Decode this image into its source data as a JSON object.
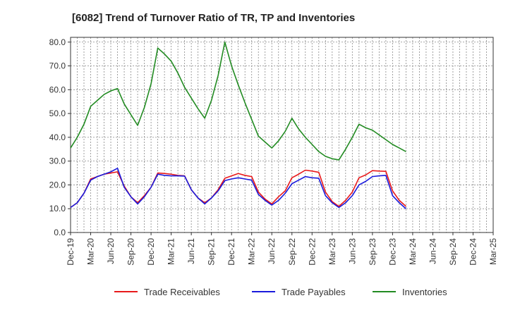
{
  "chart_data": {
    "type": "line",
    "title": "[6082]  Trend of Turnover Ratio of TR, TP and Inventories",
    "xlabel": "",
    "ylabel": "",
    "ylim": [
      0,
      82
    ],
    "yticks": [
      0,
      10,
      20,
      30,
      40,
      50,
      60,
      70,
      80
    ],
    "x_start": "Dec-19",
    "x_tick_labels": [
      "Dec-19",
      "Mar-20",
      "Jun-20",
      "Sep-20",
      "Dec-20",
      "Mar-21",
      "Jun-21",
      "Sep-21",
      "Dec-21",
      "Mar-22",
      "Jun-22",
      "Sep-22",
      "Dec-22",
      "Mar-23",
      "Jun-23",
      "Sep-23",
      "Dec-23",
      "Mar-24",
      "Jun-24",
      "Sep-24",
      "Dec-24",
      "Mar-25"
    ],
    "grid": true,
    "legend_position": "bottom",
    "series": [
      {
        "name": "Trade Receivables",
        "color": "#e8191b",
        "values": [
          10.5,
          12.5,
          16.5,
          22.5,
          23.5,
          24.5,
          25.0,
          25.5,
          19.5,
          15.0,
          12.5,
          15.5,
          19.0,
          25.0,
          24.8,
          24.5,
          24.0,
          23.8,
          18.0,
          14.5,
          12.5,
          14.5,
          18.0,
          22.8,
          23.8,
          24.8,
          24.0,
          23.5,
          17.0,
          14.0,
          12.0,
          15.0,
          17.5,
          23.0,
          24.5,
          26.2,
          25.8,
          25.3,
          17.0,
          13.0,
          11.0,
          13.5,
          17.0,
          23.0,
          24.2,
          26.0,
          25.8,
          25.7,
          17.5,
          13.5,
          11.0
        ]
      },
      {
        "name": "Trade Payables",
        "color": "#1a1adc",
        "values": [
          10.5,
          12.5,
          16.5,
          22.0,
          23.5,
          24.5,
          25.5,
          27.0,
          19.0,
          15.0,
          12.0,
          15.0,
          19.0,
          24.5,
          24.0,
          23.8,
          23.8,
          23.7,
          18.0,
          14.5,
          12.0,
          14.5,
          17.5,
          21.8,
          22.5,
          23.0,
          22.5,
          22.0,
          16.0,
          13.5,
          11.5,
          13.5,
          16.5,
          20.5,
          22.0,
          23.5,
          23.0,
          22.8,
          15.5,
          12.5,
          10.5,
          12.5,
          15.5,
          20.0,
          21.5,
          23.5,
          23.8,
          24.0,
          15.5,
          12.5,
          10.0
        ]
      },
      {
        "name": "Inventories",
        "color": "#228b22",
        "values": [
          35.5,
          40.0,
          45.5,
          53.0,
          55.5,
          58.0,
          59.5,
          60.5,
          54.0,
          49.5,
          45.0,
          52.5,
          62.5,
          77.5,
          75.0,
          72.0,
          67.0,
          61.0,
          56.5,
          52.0,
          48.0,
          55.5,
          66.0,
          80.0,
          70.0,
          62.0,
          54.5,
          47.5,
          40.5,
          38.0,
          35.5,
          38.5,
          42.5,
          48.0,
          43.5,
          40.0,
          37.0,
          34.0,
          32.0,
          31.0,
          30.5,
          35.0,
          40.0,
          45.5,
          44.0,
          43.0,
          41.0,
          39.0,
          37.0,
          35.5,
          34.0
        ]
      }
    ]
  }
}
